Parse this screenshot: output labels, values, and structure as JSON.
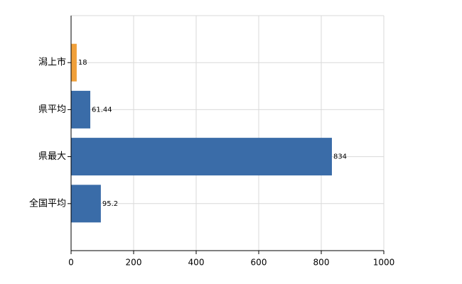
{
  "chart_data": {
    "type": "barh",
    "categories": [
      "潟上市",
      "県平均",
      "県最大",
      "全国平均"
    ],
    "values": [
      18,
      61.44,
      834,
      95.2
    ],
    "colors": [
      "#f0a03a",
      "#3a6ca8",
      "#3a6ca8",
      "#3a6ca8"
    ],
    "xlim": [
      0,
      1000
    ],
    "xticks": [
      0,
      200,
      400,
      600,
      800,
      1000
    ],
    "grid": true
  }
}
